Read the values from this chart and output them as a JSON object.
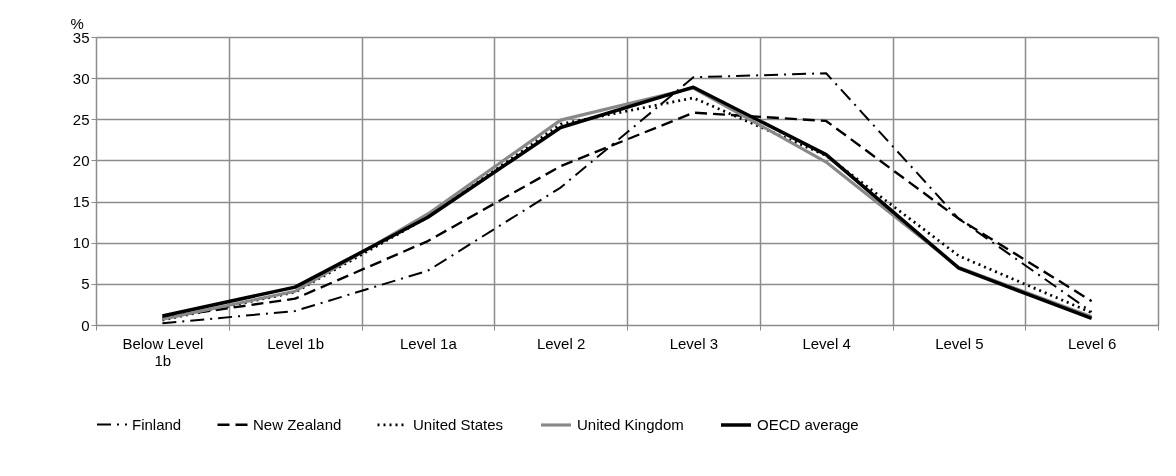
{
  "chart_data": {
    "type": "line",
    "ylabel": "%",
    "categories": [
      "Below Level 1b",
      "Level 1b",
      "Level 1a",
      "Level 2",
      "Level 3",
      "Level 4",
      "Level 5",
      "Level 6"
    ],
    "ylim": [
      0,
      35
    ],
    "yticks": [
      0,
      5,
      10,
      15,
      20,
      25,
      30,
      35
    ],
    "grid": true,
    "legend": "bottom",
    "series": [
      {
        "name": "Finland",
        "color": "#000000",
        "line_style": "dashdot",
        "values": [
          0.2,
          1.7,
          6.6,
          16.7,
          30.1,
          30.6,
          12.9,
          1.6
        ]
      },
      {
        "name": "New Zealand",
        "color": "#000000",
        "line_style": "dashed",
        "values": [
          0.9,
          3.2,
          10.2,
          19.3,
          25.8,
          24.8,
          12.9,
          2.9
        ]
      },
      {
        "name": "United States",
        "color": "#000000",
        "line_style": "dotted",
        "values": [
          0.6,
          4.0,
          13.1,
          24.4,
          27.6,
          20.6,
          8.4,
          1.5
        ]
      },
      {
        "name": "United Kingdom",
        "color": "#888888",
        "line_style": "solid",
        "values": [
          0.7,
          4.1,
          13.5,
          24.9,
          28.8,
          19.8,
          7.0,
          1.0
        ]
      },
      {
        "name": "OECD average",
        "color": "#000000",
        "line_style": "solid",
        "values": [
          1.1,
          4.6,
          13.1,
          24.0,
          28.9,
          20.7,
          6.9,
          0.8
        ]
      }
    ]
  }
}
